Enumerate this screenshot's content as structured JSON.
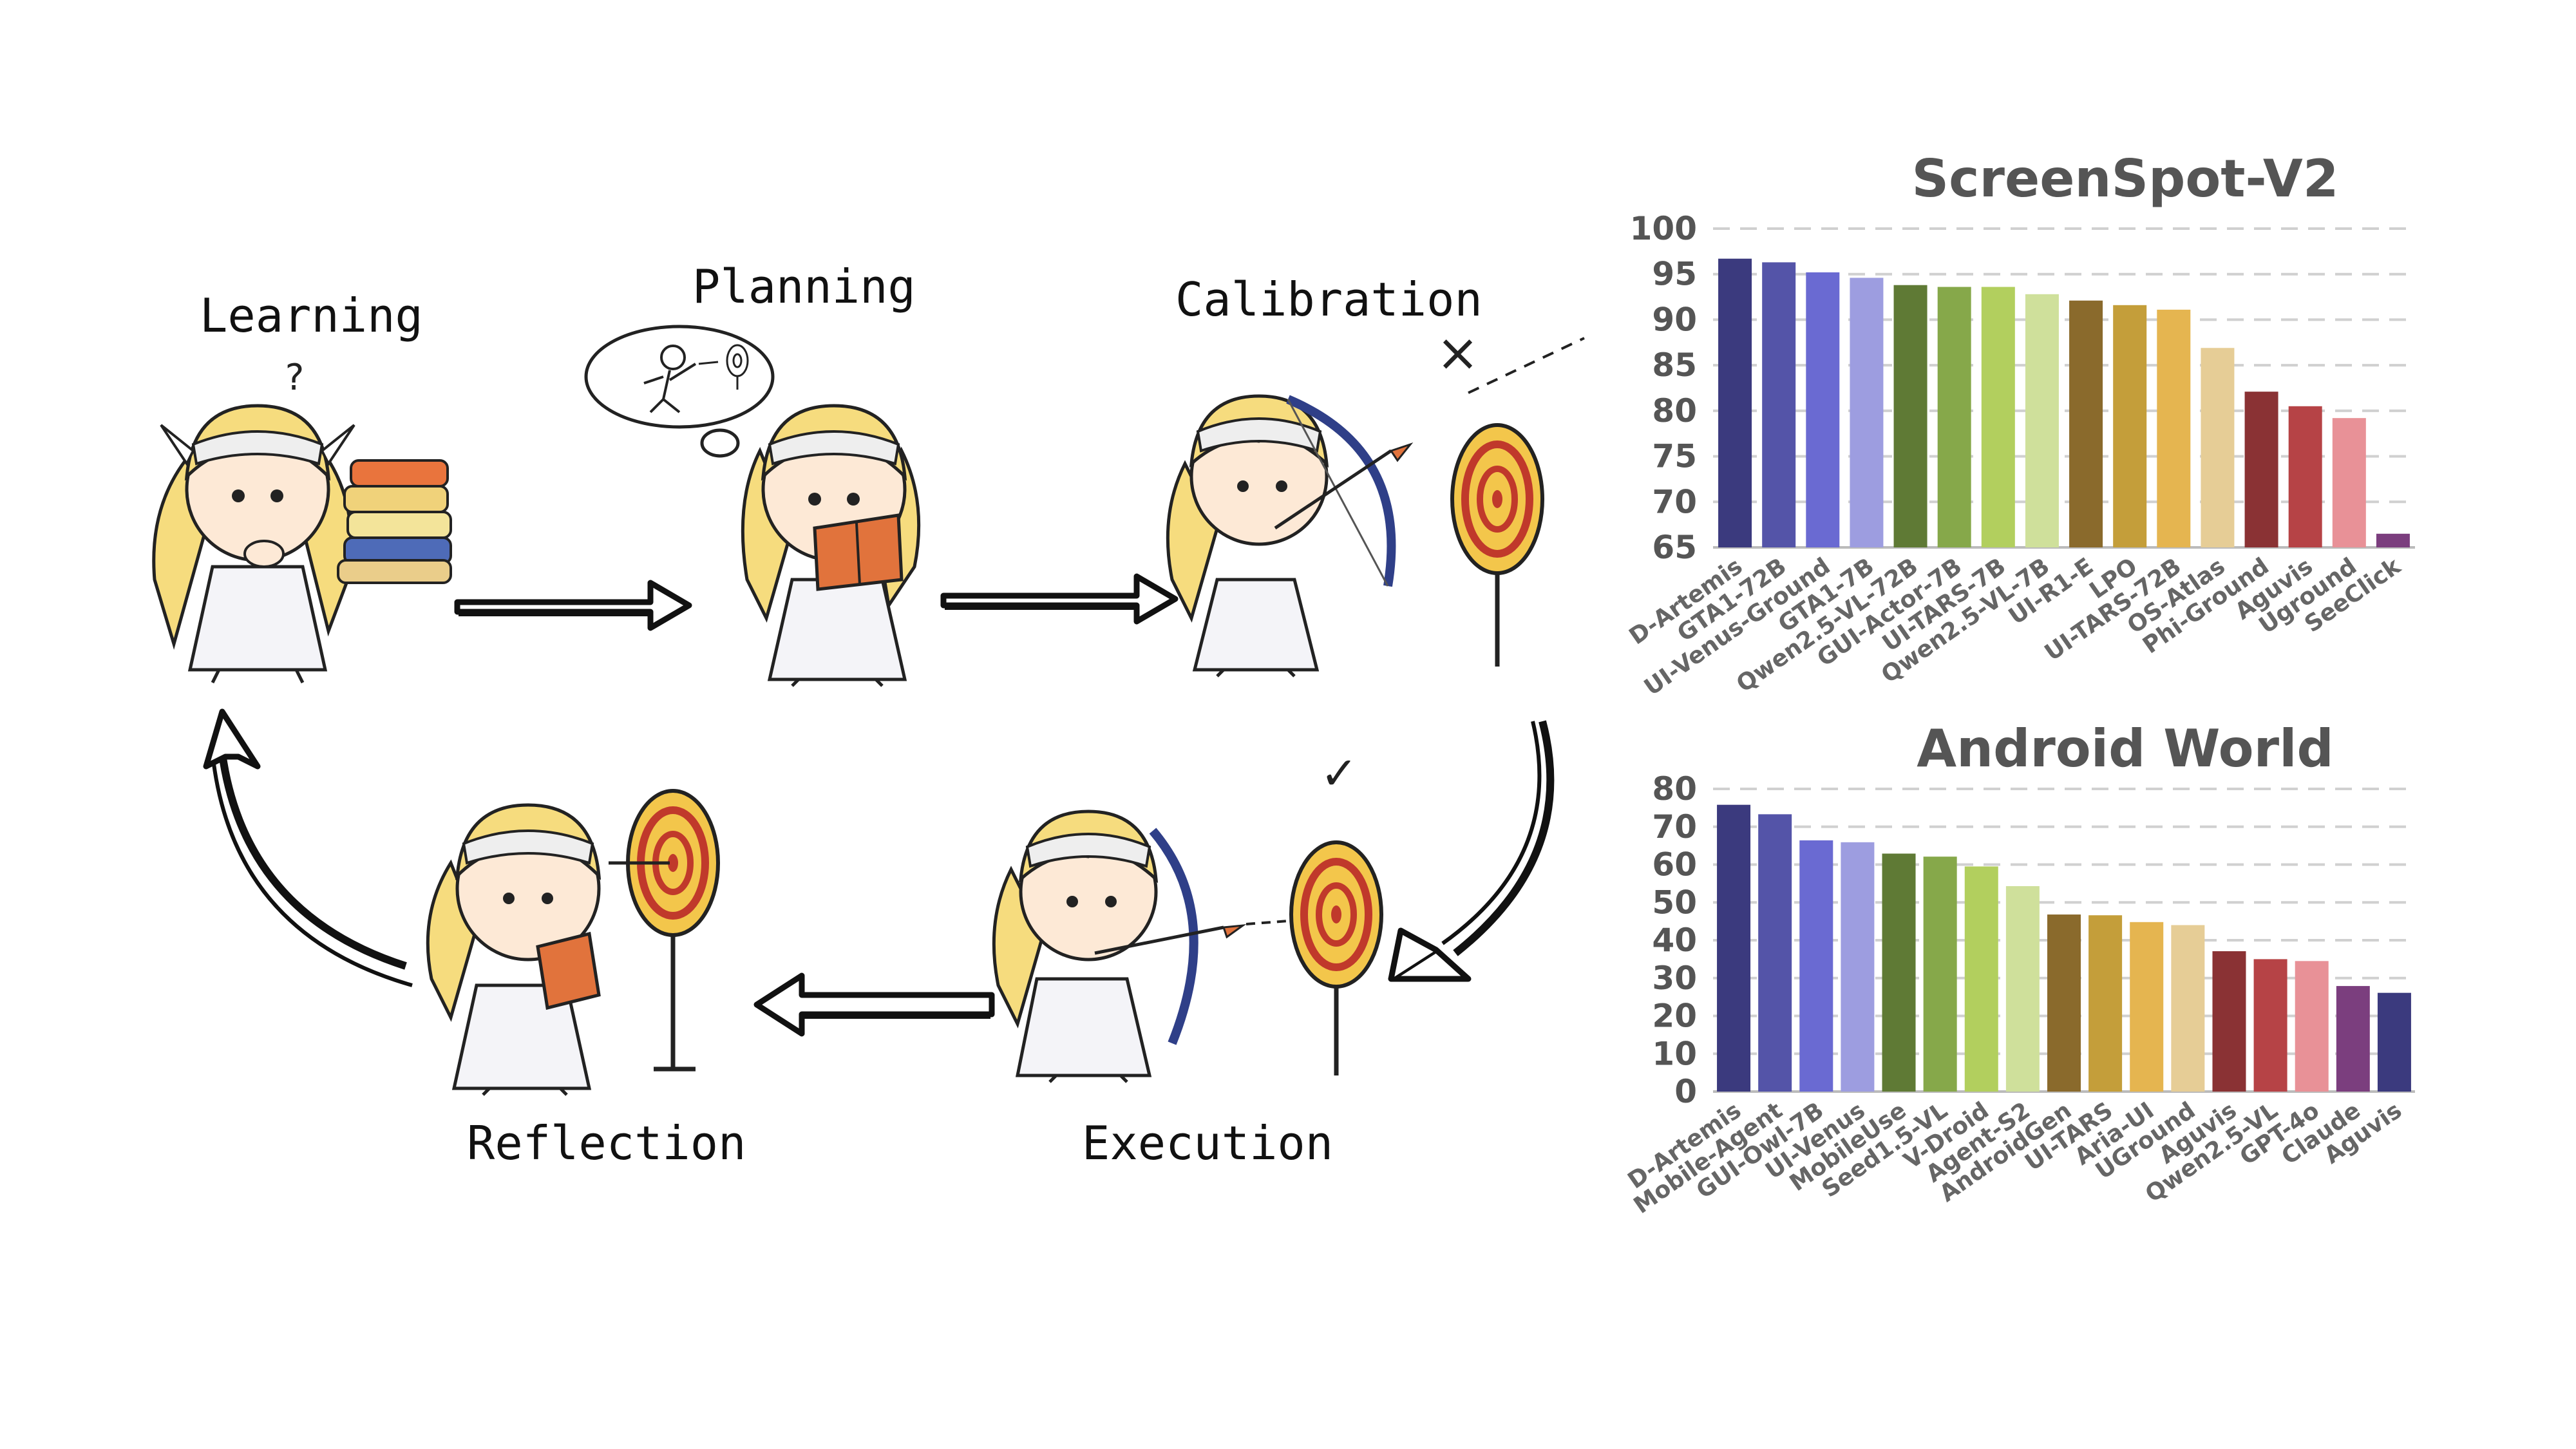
{
  "stages": {
    "learning": "Learning",
    "planning": "Planning",
    "calibration": "Calibration",
    "execution": "Execution",
    "reflection": "Reflection",
    "question_mark": "?",
    "cross_mark": "×",
    "check_mark": "✓"
  },
  "colors": {
    "palette": [
      "#3b3a7e",
      "#5454a8",
      "#6a6ad2",
      "#9d9de0",
      "#5f7a35",
      "#86a84a",
      "#b2cf5e",
      "#cfe09b",
      "#8a6a2c",
      "#c49e3a",
      "#e5b550",
      "#e6cd96",
      "#8a3234",
      "#b64346",
      "#e89197",
      "#7b3e7e"
    ],
    "target_outer": "#f3c64b",
    "target_ring": "#c0392b"
  },
  "chart_data": [
    {
      "type": "bar",
      "title": "ScreenSpot-V2",
      "categories": [
        "D-Artemis",
        "GTA1-72B",
        "UI-Venus-Ground",
        "GTA1-7B",
        "Qwen2.5-VL-72B",
        "GUI-Actor-7B",
        "UI-TARS-7B",
        "Qwen2.5-VL-7B",
        "UI-R1-E",
        "LPO",
        "UI-TARS-72B",
        "OS-Atlas",
        "Phi-Ground",
        "Aguvis",
        "Uground",
        "SeeClick"
      ],
      "values": [
        96.7,
        96.3,
        95.2,
        94.6,
        93.8,
        93.6,
        93.6,
        92.8,
        92.1,
        91.6,
        91.1,
        86.9,
        82.1,
        80.5,
        79.2,
        66.5
      ],
      "yticks": [
        65,
        70,
        75,
        80,
        85,
        90,
        95,
        100
      ],
      "ylim": [
        65,
        100
      ]
    },
    {
      "type": "bar",
      "title": "Android World",
      "categories": [
        "D-Artemis",
        "Mobile-Agent",
        "GUI-Owl-7B",
        "UI-Venus",
        "MobileUse",
        "Seed1.5-VL",
        "V-Droid",
        "Agent-S2",
        "AndroidGen",
        "UI-TARS",
        "Aria-UI",
        "UGround",
        "Aguvis",
        "Qwen2.5-VL",
        "GPT-4o",
        "Claude",
        "Aguvis"
      ],
      "values": [
        75.8,
        73.3,
        66.4,
        65.9,
        62.9,
        62.1,
        59.5,
        54.3,
        46.8,
        46.6,
        44.8,
        44.0,
        37.1,
        35.0,
        34.5,
        27.9,
        26.1
      ],
      "yticks": [
        0,
        10,
        20,
        30,
        40,
        50,
        60,
        70,
        80
      ],
      "ylim": [
        0,
        80
      ]
    }
  ]
}
